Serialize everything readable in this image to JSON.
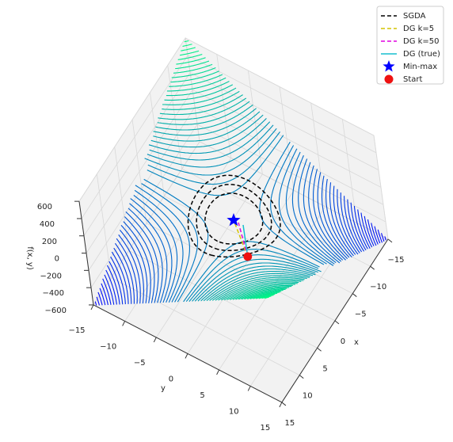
{
  "chart_data": {
    "type": "surface3d",
    "xlabel": "x",
    "ylabel": "y",
    "zlabel": "f(x, y)",
    "xlim": [
      -15,
      15
    ],
    "ylim": [
      -15,
      15
    ],
    "zlim": [
      -600,
      600
    ],
    "xticks": [
      {
        "value": -15,
        "label": "−15"
      },
      {
        "value": -10,
        "label": "−10"
      },
      {
        "value": -5,
        "label": "−5"
      },
      0,
      5,
      10,
      15
    ],
    "yticks": [
      {
        "value": -15,
        "label": "−15"
      },
      {
        "value": -10,
        "label": "−10"
      },
      {
        "value": -5,
        "label": "−5"
      },
      0,
      5,
      10,
      15
    ],
    "zticks": [
      {
        "value": -600,
        "label": "−600"
      },
      {
        "value": -400,
        "label": "−400"
      },
      {
        "value": -200,
        "label": "−200"
      },
      0,
      200,
      400,
      600
    ],
    "grid": true,
    "legend": "upper right",
    "series": [
      {
        "name": "SGDA",
        "color": "#000000",
        "style": "dashed"
      },
      {
        "name": "DG k=5",
        "color": "#d4c400",
        "style": "dashed"
      },
      {
        "name": "DG k=50",
        "color": "#e000e0",
        "style": "dashed"
      },
      {
        "name": "DG (true)",
        "color": "#17becf",
        "style": "solid"
      }
    ],
    "points": [
      {
        "name": "Min-max",
        "color": "#0000ff",
        "marker": "star",
        "x": 0,
        "y": 0,
        "z": 0
      },
      {
        "name": "Start",
        "color": "#ee1111",
        "marker": "circle",
        "x": 4,
        "y": 4.5,
        "z": 0
      }
    ]
  }
}
